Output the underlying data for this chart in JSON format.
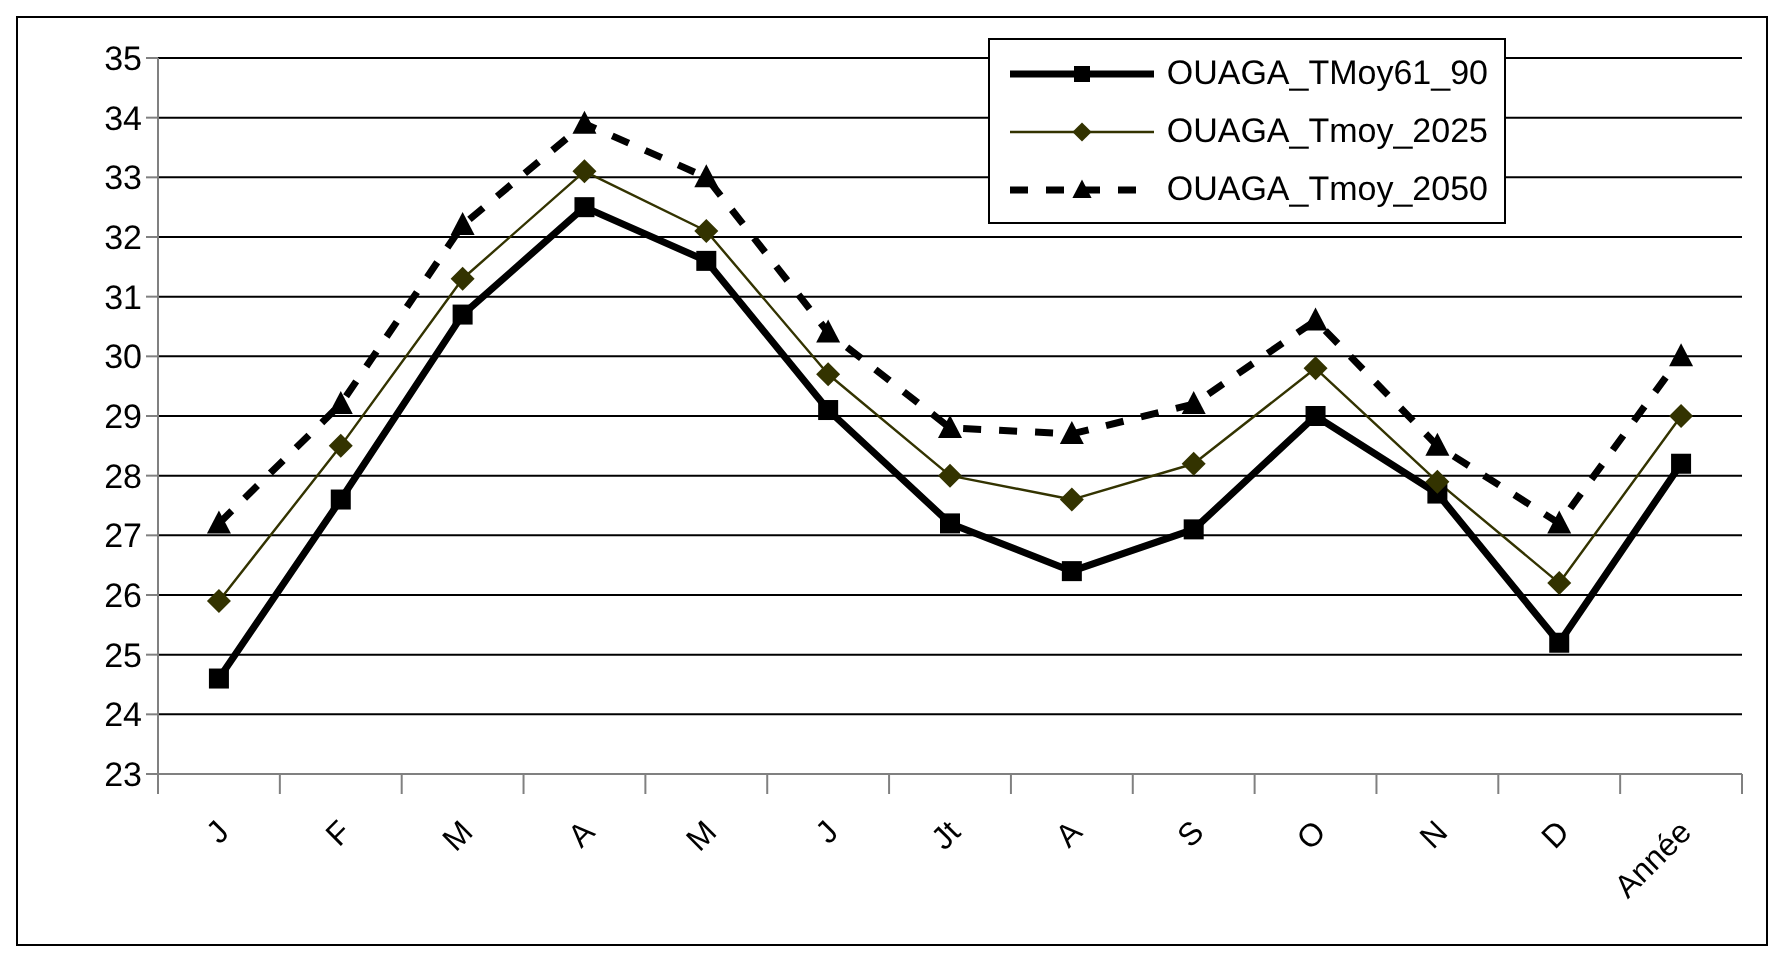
{
  "chart_data": {
    "type": "line",
    "categories": [
      "J",
      "F",
      "M",
      "A",
      "M",
      "J",
      "Jt",
      "A",
      "S",
      "O",
      "N",
      "D",
      "Année"
    ],
    "series": [
      {
        "name": "OUAGA_TMoy61_90",
        "color": "#000000",
        "marker": "square",
        "line_style": "solid",
        "values": [
          24.6,
          27.6,
          30.7,
          32.5,
          31.6,
          29.1,
          27.2,
          26.4,
          27.1,
          29.0,
          27.7,
          25.2,
          28.2
        ]
      },
      {
        "name": "OUAGA_Tmoy_2025",
        "color": "#333300",
        "marker": "diamond",
        "line_style": "solid",
        "values": [
          25.9,
          28.5,
          31.3,
          33.1,
          32.1,
          29.7,
          28.0,
          27.6,
          28.2,
          29.8,
          27.9,
          26.2,
          29.0
        ]
      },
      {
        "name": "OUAGA_Tmoy_2050",
        "color": "#000000",
        "marker": "triangle",
        "line_style": "dashed",
        "values": [
          27.2,
          29.2,
          32.2,
          33.9,
          33.0,
          30.4,
          28.8,
          28.7,
          29.2,
          30.6,
          28.5,
          27.2,
          30.0
        ]
      }
    ],
    "ylim": [
      23,
      35
    ],
    "yticks": [
      23,
      24,
      25,
      26,
      27,
      28,
      29,
      30,
      31,
      32,
      33,
      34,
      35
    ],
    "grid": "y",
    "legend": "top right"
  }
}
